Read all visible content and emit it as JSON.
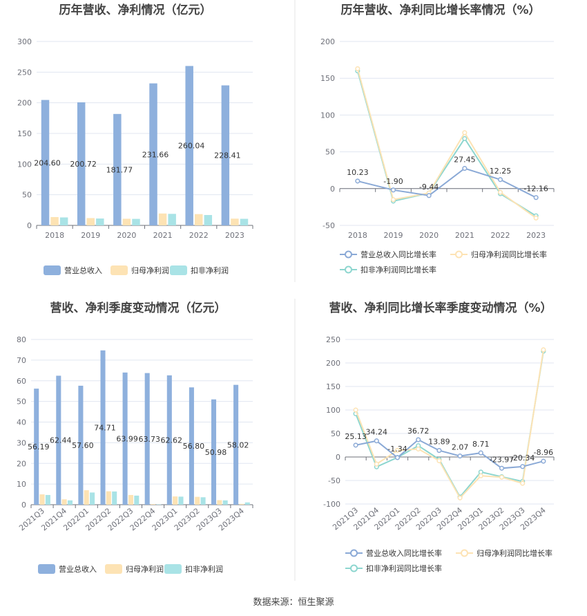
{
  "source": "数据来源：恒生聚源",
  "colors": {
    "revenue": "#8eb0dd",
    "net_profit": "#fde3b4",
    "deducted_profit": "#a9e3e6",
    "revenue_line": "#8aa9d6",
    "net_line": "#fde3b4",
    "deducted_line": "#8dd6cf"
  },
  "chart_data": [
    {
      "type": "bar",
      "title": "历年营收、净利情况（亿元）",
      "categories": [
        "2018",
        "2019",
        "2020",
        "2021",
        "2022",
        "2023"
      ],
      "ylim": [
        0,
        300
      ],
      "yticks": [
        "0",
        "50",
        "100",
        "150",
        "200",
        "250",
        "300"
      ],
      "series": [
        {
          "name": "营业总收入",
          "values": [
            204.6,
            200.72,
            181.77,
            231.66,
            260.04,
            228.41
          ]
        },
        {
          "name": "归母净利润",
          "values": [
            13.6,
            11.9,
            10.8,
            19.4,
            18.4,
            11.0
          ]
        },
        {
          "name": "扣非净利润",
          "values": [
            13.0,
            11.2,
            10.6,
            18.8,
            16.9,
            10.7
          ]
        }
      ],
      "data_labels": [
        "204.60",
        "200.72",
        "181.77",
        "231.66",
        "260.04",
        "228.41"
      ],
      "grid": true,
      "legend": "bottom"
    },
    {
      "type": "line",
      "title": "历年营收、净利同比增长率情况（%）",
      "categories": [
        "2018",
        "2019",
        "2020",
        "2021",
        "2022",
        "2023"
      ],
      "ylim": [
        -50,
        200
      ],
      "yticks": [
        "-50",
        "0",
        "50",
        "100",
        "150",
        "200"
      ],
      "series": [
        {
          "name": "营业总收入同比增长率",
          "values": [
            10.23,
            -1.9,
            -9.44,
            27.45,
            12.25,
            -12.16
          ]
        },
        {
          "name": "归母净利润同比增长率",
          "values": [
            163,
            -15,
            -6,
            76,
            -5,
            -40
          ]
        },
        {
          "name": "扣非净利润同比增长率",
          "values": [
            160,
            -17,
            -6,
            68,
            -7,
            -37
          ]
        }
      ],
      "data_labels": [
        "10.23",
        "-1.90",
        "-9.44",
        "27.45",
        "12.25",
        "-12.16"
      ],
      "grid": true,
      "legend": "bottom"
    },
    {
      "type": "bar",
      "title": "营收、净利季度变动情况（亿元）",
      "categories": [
        "2021Q3",
        "2021Q4",
        "2022Q1",
        "2022Q2",
        "2022Q3",
        "2022Q4",
        "2023Q1",
        "2023Q2",
        "2023Q3",
        "2023Q4"
      ],
      "ylim": [
        0,
        80
      ],
      "yticks": [
        "0",
        "10",
        "20",
        "30",
        "40",
        "50",
        "60",
        "70",
        "80"
      ],
      "series": [
        {
          "name": "营业总收入",
          "values": [
            56.19,
            62.44,
            57.6,
            74.71,
            63.99,
            63.73,
            62.62,
            56.8,
            50.98,
            58.02
          ]
        },
        {
          "name": "归母净利润",
          "values": [
            5.0,
            2.6,
            7.0,
            6.5,
            4.7,
            0.3,
            4.0,
            3.8,
            2.2,
            0.4
          ]
        },
        {
          "name": "扣非净利润",
          "values": [
            4.7,
            2.1,
            5.9,
            6.4,
            4.4,
            0.2,
            3.9,
            3.6,
            2.1,
            1.1
          ]
        }
      ],
      "data_labels": [
        "56.19",
        "62.44",
        "57.60",
        "74.71",
        "63.99",
        "63.73",
        "62.62",
        "56.80",
        "50.98",
        "58.02"
      ],
      "grid": true,
      "legend": "bottom"
    },
    {
      "type": "line",
      "title": "营收、净利同比增长率季度变动情况（%）",
      "categories": [
        "2021Q3",
        "2021Q4",
        "2022Q1",
        "2022Q2",
        "2022Q3",
        "2022Q4",
        "2023Q1",
        "2023Q2",
        "2023Q3",
        "2023Q4"
      ],
      "ylim": [
        -100,
        250
      ],
      "yticks": [
        "-100",
        "-50",
        "0",
        "50",
        "100",
        "150",
        "200",
        "250"
      ],
      "series": [
        {
          "name": "营业总收入同比增长率",
          "values": [
            25.13,
            34.24,
            -1.34,
            36.72,
            13.89,
            2.07,
            8.71,
            -23.97,
            -20.34,
            -8.96
          ]
        },
        {
          "name": "归母净利润同比增长率",
          "values": [
            100,
            -15,
            14,
            17,
            -8,
            -87,
            -40,
            -43,
            -56,
            228
          ]
        },
        {
          "name": "扣非净利润同比增长率",
          "values": [
            92,
            -21,
            -1,
            24,
            -5,
            -85,
            -32,
            -42,
            -52,
            225
          ]
        }
      ],
      "data_labels": [
        "25.13",
        "34.24",
        "-1.34",
        "36.72",
        "13.89",
        "2.07",
        "8.71",
        "-23.97",
        "-20.34",
        "-8.96"
      ],
      "grid": true,
      "legend": "bottom"
    }
  ]
}
